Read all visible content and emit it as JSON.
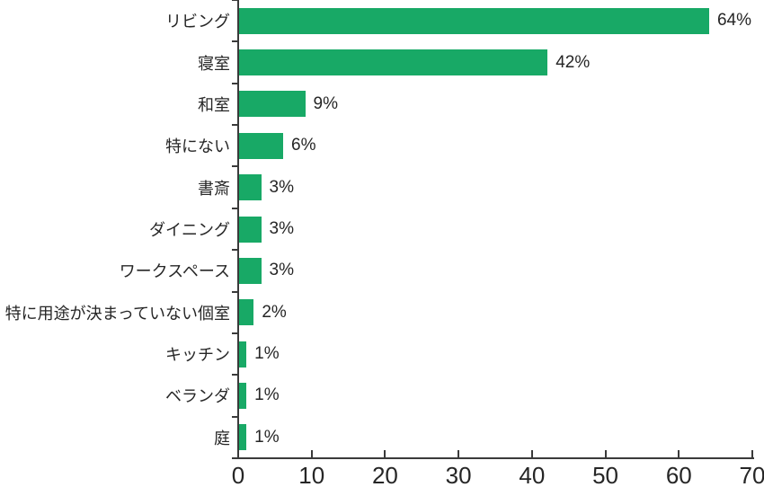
{
  "chart_data": {
    "type": "bar",
    "orientation": "horizontal",
    "title": "",
    "xlabel": "",
    "ylabel": "",
    "categories": [
      "リビング",
      "寝室",
      "和室",
      "特にない",
      "書斎",
      "ダイニング",
      "ワークスペース",
      "特に用途が決まっていない個室",
      "キッチン",
      "ベランダ",
      "庭"
    ],
    "values": [
      64,
      42,
      9,
      6,
      3,
      3,
      3,
      2,
      1,
      1,
      1
    ],
    "value_labels": [
      "64%",
      "42%",
      "9%",
      "6%",
      "3%",
      "3%",
      "3%",
      "2%",
      "1%",
      "1%",
      "1%"
    ],
    "xlim": [
      0,
      70
    ],
    "x_ticks": [
      0,
      10,
      20,
      30,
      40,
      50,
      60,
      70
    ],
    "x_tick_labels": [
      "0",
      "10",
      "20",
      "30",
      "40",
      "50",
      "60",
      "70"
    ],
    "grid": false,
    "legend": false,
    "bar_color": "#18a966",
    "axis_color": "#3a3a3a",
    "text_color": "#262626"
  }
}
